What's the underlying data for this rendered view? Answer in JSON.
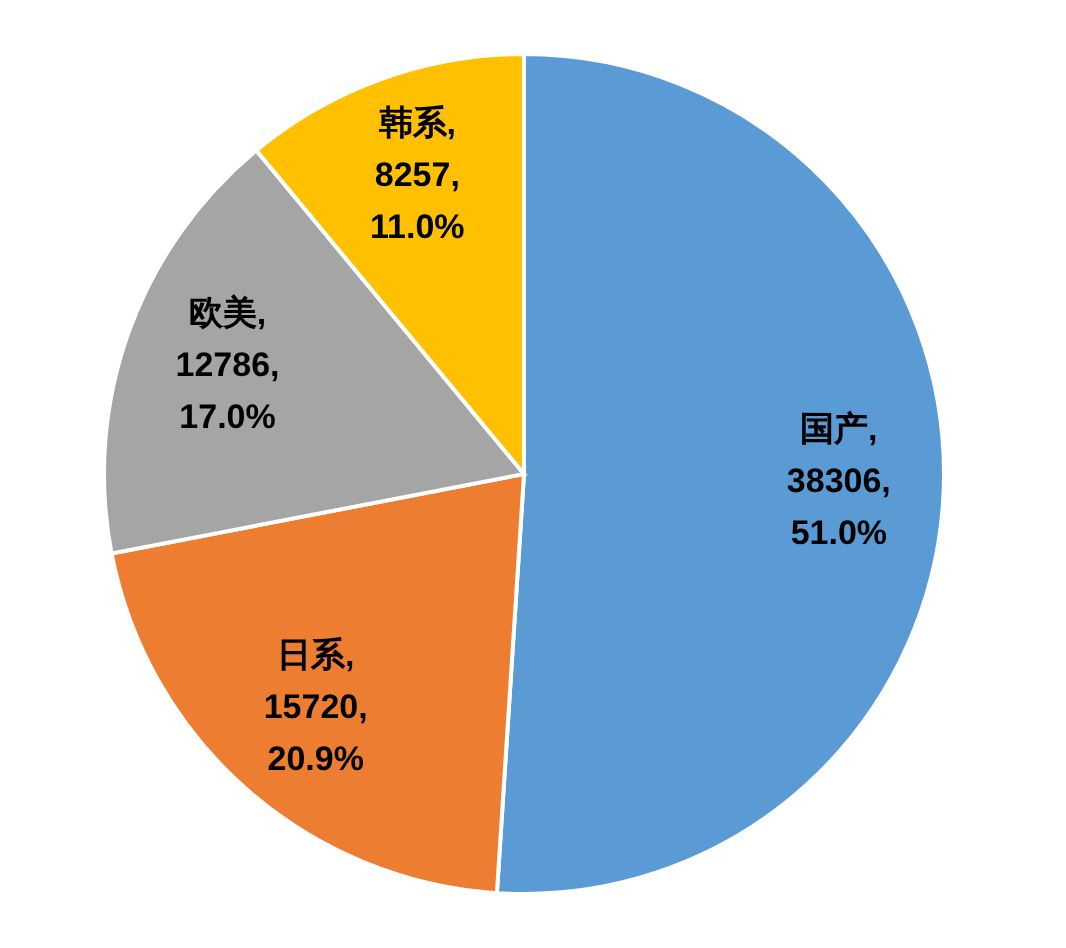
{
  "chart_data": {
    "type": "pie",
    "categories": [
      "国产",
      "日系",
      "欧美",
      "韩系"
    ],
    "values": [
      38306,
      15720,
      12786,
      8257
    ],
    "colors": [
      "#5b9bd5",
      "#ed7d31",
      "#a5a5a5",
      "#ffc000"
    ],
    "value_labels": [
      ",\n38306,\n51.0%",
      ",\n15720,\n20.9%",
      ",\n12786,\n17.0%",
      ",\n8257,\n11.0%"
    ],
    "legend": false
  }
}
